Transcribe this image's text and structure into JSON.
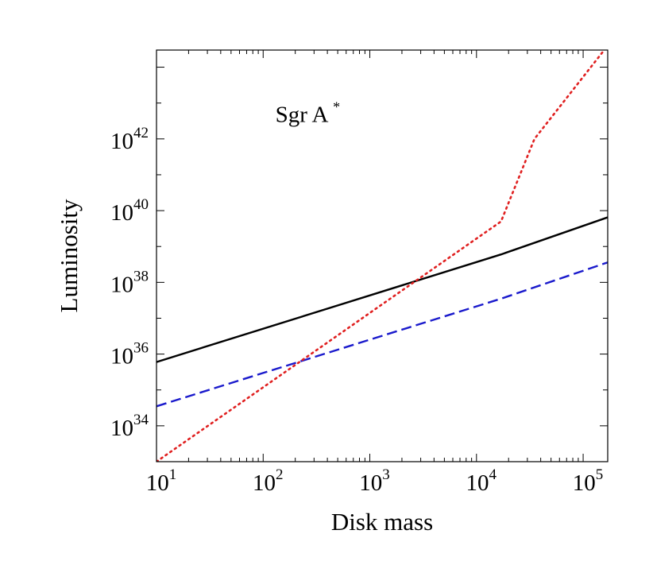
{
  "chart_data": {
    "type": "line",
    "title": "",
    "xlabel": "Disk mass",
    "ylabel": "Luminosity",
    "xscale": "log",
    "yscale": "log",
    "xlim": [
      10,
      170000
    ],
    "ylim": [
      1e+33,
      3e+44
    ],
    "grid": false,
    "legend": "none",
    "annotation": {
      "base": "Sgr A",
      "sup": "*",
      "x": 130,
      "y": 3e+42
    },
    "x_ticks": [
      {
        "value": 10,
        "base": "10",
        "exp": "1"
      },
      {
        "value": 100,
        "base": "10",
        "exp": "2"
      },
      {
        "value": 1000,
        "base": "10",
        "exp": "3"
      },
      {
        "value": 10000,
        "base": "10",
        "exp": "4"
      },
      {
        "value": 100000,
        "base": "10",
        "exp": "5"
      }
    ],
    "y_ticks": [
      {
        "value": 1e+34,
        "base": "10",
        "exp": "34"
      },
      {
        "value": 1e+36,
        "base": "10",
        "exp": "36"
      },
      {
        "value": 1e+38,
        "base": "10",
        "exp": "38"
      },
      {
        "value": 1e+40,
        "base": "10",
        "exp": "40"
      },
      {
        "value": 1e+42,
        "base": "10",
        "exp": "42"
      }
    ],
    "series": [
      {
        "style": "solid",
        "color": "#000000",
        "x": [
          10,
          17000,
          170000
        ],
        "y": [
          6e+35,
          6e+38,
          6.5e+39
        ]
      },
      {
        "style": "dashed",
        "color": "#1a1acc",
        "x": [
          10,
          17000,
          170000
        ],
        "y": [
          3.5e+34,
          3.5e+37,
          3.6e+38
        ]
      },
      {
        "style": "dotted",
        "color": "#e02020",
        "x": [
          10,
          17000,
          35000,
          170000
        ],
        "y": [
          1e+33,
          5e+39,
          1e+42,
          4e+44
        ]
      }
    ]
  }
}
